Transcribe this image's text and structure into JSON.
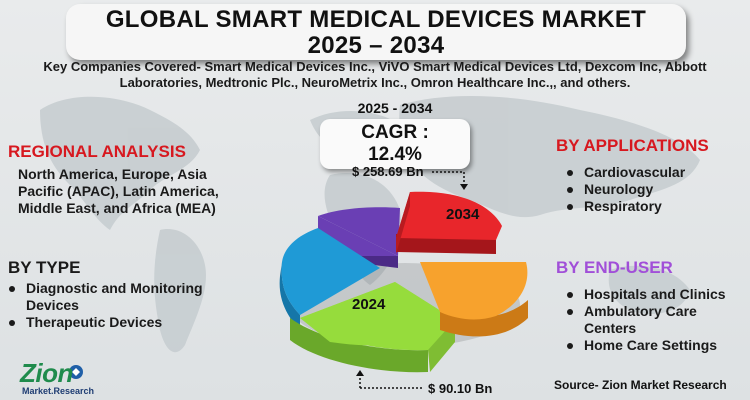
{
  "title": {
    "line1": "GLOBAL SMART MEDICAL DEVICES MARKET",
    "line2": "2025 – 2034"
  },
  "companies": "Key Companies Covered- Smart Medical Devices Inc., ViVO Smart Medical Devices Ltd, Dexcom Inc, Abbott Laboratories, Medtronic Plc., NeuroMetrix Inc., Omron Healthcare Inc.,, and others.",
  "cagr": {
    "years": "2025 - 2034",
    "value": "CAGR : 12.4%"
  },
  "regional": {
    "heading": "REGIONAL ANALYSIS",
    "text": "North America, Europe, Asia Pacific (APAC), Latin America, Middle East, and Africa (MEA)"
  },
  "by_type": {
    "heading": "BY TYPE",
    "items": [
      "Diagnostic and Monitoring Devices",
      "Therapeutic Devices"
    ]
  },
  "by_applications": {
    "heading": "BY APPLICATIONS",
    "items": [
      "Cardiovascular",
      "Neurology",
      "Respiratory"
    ]
  },
  "by_end_user": {
    "heading": "BY END-USER",
    "items": [
      "Hospitals and Clinics",
      "Ambulatory Care Centers",
      "Home Care Settings"
    ]
  },
  "pie": {
    "label_2034": "2034",
    "label_2024": "2024",
    "value_top": "$ 258.69 Bn",
    "value_bottom": "$ 90.10 Bn",
    "colors": {
      "red": "#e8262b",
      "orange": "#f7a22d",
      "green": "#96dc3c",
      "blue": "#1f9ad6",
      "purple": "#6a3fb4"
    }
  },
  "source": "Source- Zion Market Research",
  "logo": {
    "name": "Zion",
    "sub": "Market.Research"
  }
}
